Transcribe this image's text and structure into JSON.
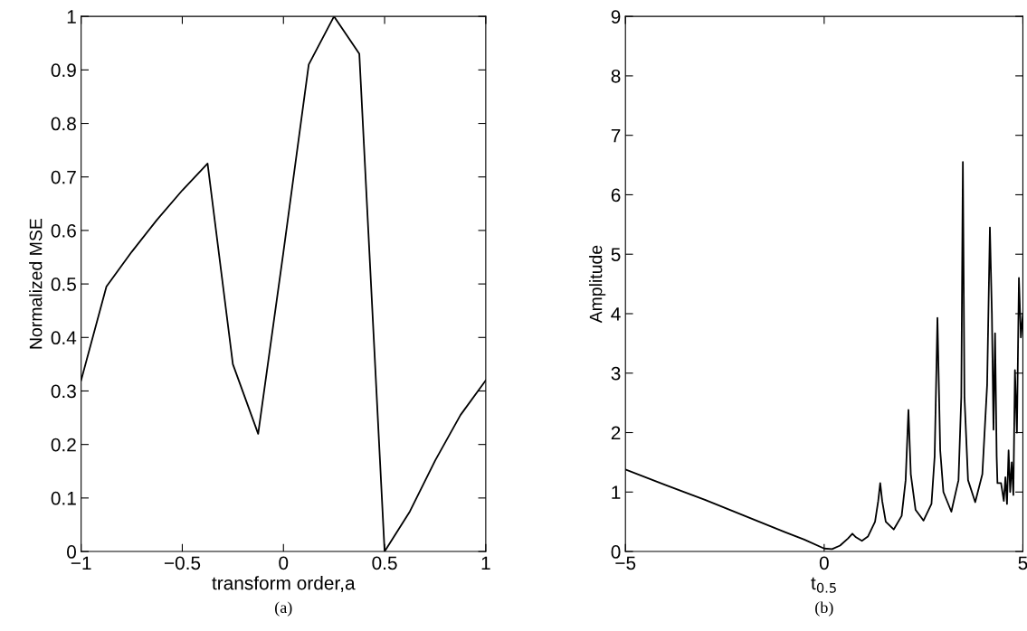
{
  "chart_data": [
    {
      "type": "line",
      "xlabel": "transform order,a",
      "ylabel": "Normalized MSE",
      "annotations": [
        "(a)"
      ],
      "x": [
        -1,
        -0.875,
        -0.75,
        -0.625,
        -0.5,
        -0.375,
        -0.25,
        -0.125,
        0,
        0.125,
        0.25,
        0.375,
        0.5,
        0.625,
        0.75,
        0.875,
        1
      ],
      "series": [
        {
          "color": "#000000",
          "values": [
            0.32,
            0.495,
            0.56,
            0.62,
            0.675,
            0.725,
            0.35,
            0.22,
            0.56,
            0.91,
            1.0,
            0.93,
            0.0,
            0.075,
            0.17,
            0.255,
            0.32
          ]
        }
      ],
      "xlim": [
        -1,
        1
      ],
      "xticks": [
        {
          "value": -1,
          "label": "−1"
        },
        {
          "value": -0.5,
          "label": "−0.5"
        },
        0,
        0.5,
        1
      ],
      "ylim": [
        0,
        1
      ],
      "yticks": [
        0,
        0.1,
        0.2,
        0.3,
        0.4,
        0.5,
        0.6,
        0.7,
        0.8,
        0.9,
        1
      ],
      "grid": false,
      "legend": false
    },
    {
      "type": "line",
      "xlabel": "t$_{0.5}$",
      "ylabel": "Amplitude",
      "annotations": [
        "(b)"
      ],
      "x": [
        -5,
        -4,
        -3,
        -2,
        -1,
        -0.5,
        0,
        0.2,
        0.4,
        0.6,
        0.71,
        0.8,
        0.95,
        1.1,
        1.28,
        1.36,
        1.41,
        1.46,
        1.55,
        1.75,
        1.95,
        2.05,
        2.12,
        2.18,
        2.3,
        2.5,
        2.7,
        2.78,
        2.85,
        2.92,
        3.0,
        3.2,
        3.38,
        3.45,
        3.49,
        3.53,
        3.62,
        3.8,
        3.98,
        4.1,
        4.17,
        4.22,
        4.26,
        4.3,
        4.34,
        4.36,
        4.45,
        4.52,
        4.56,
        4.6,
        4.64,
        4.68,
        4.72,
        4.76,
        4.8,
        4.85,
        4.9,
        4.95,
        5.0
      ],
      "series": [
        {
          "color": "#000000",
          "values": [
            1.38,
            1.12,
            0.87,
            0.6,
            0.33,
            0.2,
            0.05,
            0.04,
            0.1,
            0.22,
            0.3,
            0.24,
            0.18,
            0.25,
            0.5,
            0.85,
            1.15,
            0.85,
            0.5,
            0.37,
            0.6,
            1.2,
            2.38,
            1.3,
            0.7,
            0.52,
            0.8,
            1.6,
            3.93,
            1.7,
            1.0,
            0.67,
            1.2,
            2.6,
            6.55,
            2.6,
            1.2,
            0.83,
            1.3,
            2.8,
            5.45,
            4.0,
            2.05,
            3.67,
            1.6,
            1.15,
            1.15,
            0.85,
            1.25,
            0.8,
            1.7,
            1.0,
            1.5,
            0.95,
            3.05,
            2.0,
            4.6,
            3.6,
            4.0
          ]
        }
      ],
      "xlim": [
        -5,
        5
      ],
      "xticks": [
        {
          "value": -5,
          "label": "−5"
        },
        0,
        5
      ],
      "ylim": [
        0,
        9
      ],
      "yticks": [
        0,
        1,
        2,
        3,
        4,
        5,
        6,
        7,
        8,
        9
      ],
      "grid": false,
      "legend": false
    }
  ]
}
